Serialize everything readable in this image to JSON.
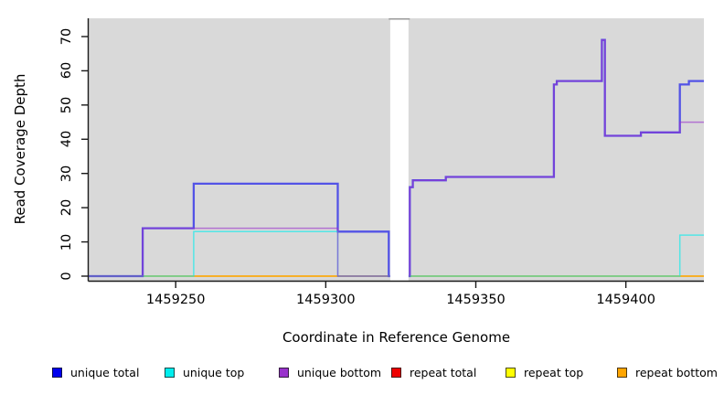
{
  "axes": {
    "xlabel": "Coordinate in Reference Genome",
    "ylabel": "Read Coverage Depth"
  },
  "chart_data": {
    "type": "line",
    "subtype": "step-coverage-plot",
    "title": "",
    "xlabel": "Coordinate in Reference Genome",
    "ylabel": "Read Coverage Depth",
    "xlim": [
      1459221,
      1459426
    ],
    "ylim": [
      0,
      70
    ],
    "xticks": [
      1459250,
      1459300,
      1459350,
      1459400
    ],
    "yticks": [
      0,
      10,
      20,
      30,
      40,
      50,
      60,
      70
    ],
    "grid": false,
    "plot_background": "#D9D9D9",
    "gap_region": {
      "from": 1459321,
      "to": 1459328,
      "color": "#FFFFFF"
    },
    "legend_position": "bottom",
    "series": [
      {
        "name": "repeat total",
        "color": "#EE0000",
        "steps": [
          [
            1459221,
            0
          ],
          [
            1459426,
            0
          ]
        ]
      },
      {
        "name": "repeat top",
        "color": "#FFFF00",
        "steps": [
          [
            1459221,
            0
          ],
          [
            1459426,
            0
          ]
        ]
      },
      {
        "name": "repeat bottom",
        "color": "#FFA500",
        "steps": [
          [
            1459221,
            0
          ],
          [
            1459426,
            0
          ]
        ]
      },
      {
        "name": "unique total",
        "color": "#0000EE",
        "steps": [
          [
            1459221,
            0
          ],
          [
            1459239,
            14
          ],
          [
            1459256,
            27
          ],
          [
            1459304,
            13
          ],
          [
            1459321,
            0
          ],
          [
            1459328,
            26
          ],
          [
            1459329,
            28
          ],
          [
            1459340,
            29
          ],
          [
            1459376,
            56
          ],
          [
            1459377,
            57
          ],
          [
            1459392,
            69
          ],
          [
            1459393,
            41
          ],
          [
            1459405,
            42
          ],
          [
            1459418,
            56
          ],
          [
            1459421,
            57
          ],
          [
            1459426,
            57
          ]
        ]
      },
      {
        "name": "unique top",
        "color": "#00EEEE",
        "steps": [
          [
            1459221,
            0
          ],
          [
            1459256,
            13
          ],
          [
            1459304,
            0
          ],
          [
            1459418,
            12
          ],
          [
            1459426,
            12
          ]
        ]
      },
      {
        "name": "unique bottom",
        "color": "#9932CC",
        "steps": [
          [
            1459221,
            0
          ],
          [
            1459239,
            14
          ],
          [
            1459304,
            0
          ],
          [
            1459328,
            26
          ],
          [
            1459329,
            28
          ],
          [
            1459340,
            29
          ],
          [
            1459376,
            56
          ],
          [
            1459377,
            57
          ],
          [
            1459392,
            69
          ],
          [
            1459393,
            41
          ],
          [
            1459405,
            42
          ],
          [
            1459418,
            45
          ],
          [
            1459426,
            45
          ]
        ]
      }
    ]
  },
  "legend": {
    "items": [
      {
        "label": "unique total",
        "color": "#0000EE"
      },
      {
        "label": "unique top",
        "color": "#00EEEE"
      },
      {
        "label": "unique bottom",
        "color": "#9932CC"
      },
      {
        "label": "repeat total",
        "color": "#EE0000"
      },
      {
        "label": "repeat top",
        "color": "#FFFF00"
      },
      {
        "label": "repeat bottom",
        "color": "#FFA500"
      }
    ]
  },
  "colors": {
    "plot_bg": "#D9D9D9",
    "gap_fill": "#FFFFFF",
    "gap_cap": "#9A9A9A",
    "axis": "#1A1A1A"
  }
}
